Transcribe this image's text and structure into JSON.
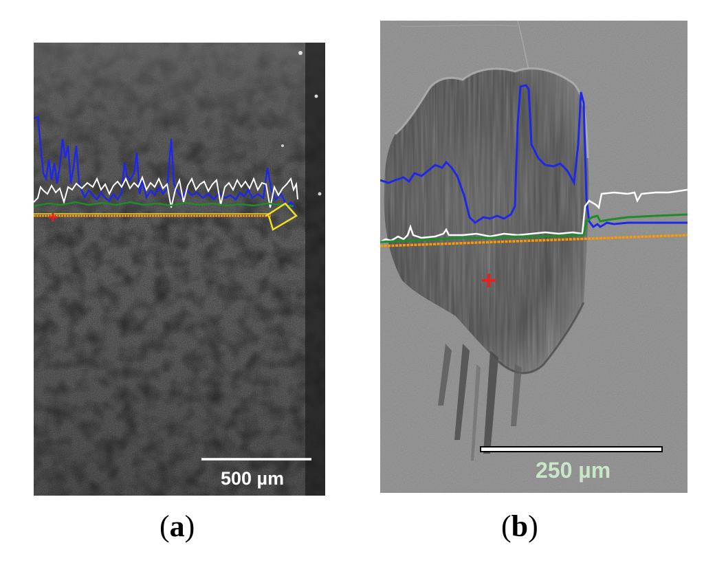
{
  "panels": [
    {
      "id": "a",
      "caption_open": "(",
      "caption_letter": "a",
      "caption_close": ")",
      "scale_bar_label": "500 µm",
      "scale_bar_color": "#ffffff"
    },
    {
      "id": "b",
      "caption_open": "(",
      "caption_letter": "b",
      "caption_close": ")",
      "scale_bar_label": "250 µm",
      "scale_bar_color": "#c8e6c8"
    }
  ],
  "colors": {
    "profile_blue": "#1e28e6",
    "profile_white": "#ffffff",
    "profile_green": "#1e8c28",
    "baseline_orange": "#ff9900",
    "marker_red": "#e82020",
    "endpoint_yellow": "#f0e020"
  },
  "icons": {
    "marker": "red-cross-marker-icon"
  }
}
